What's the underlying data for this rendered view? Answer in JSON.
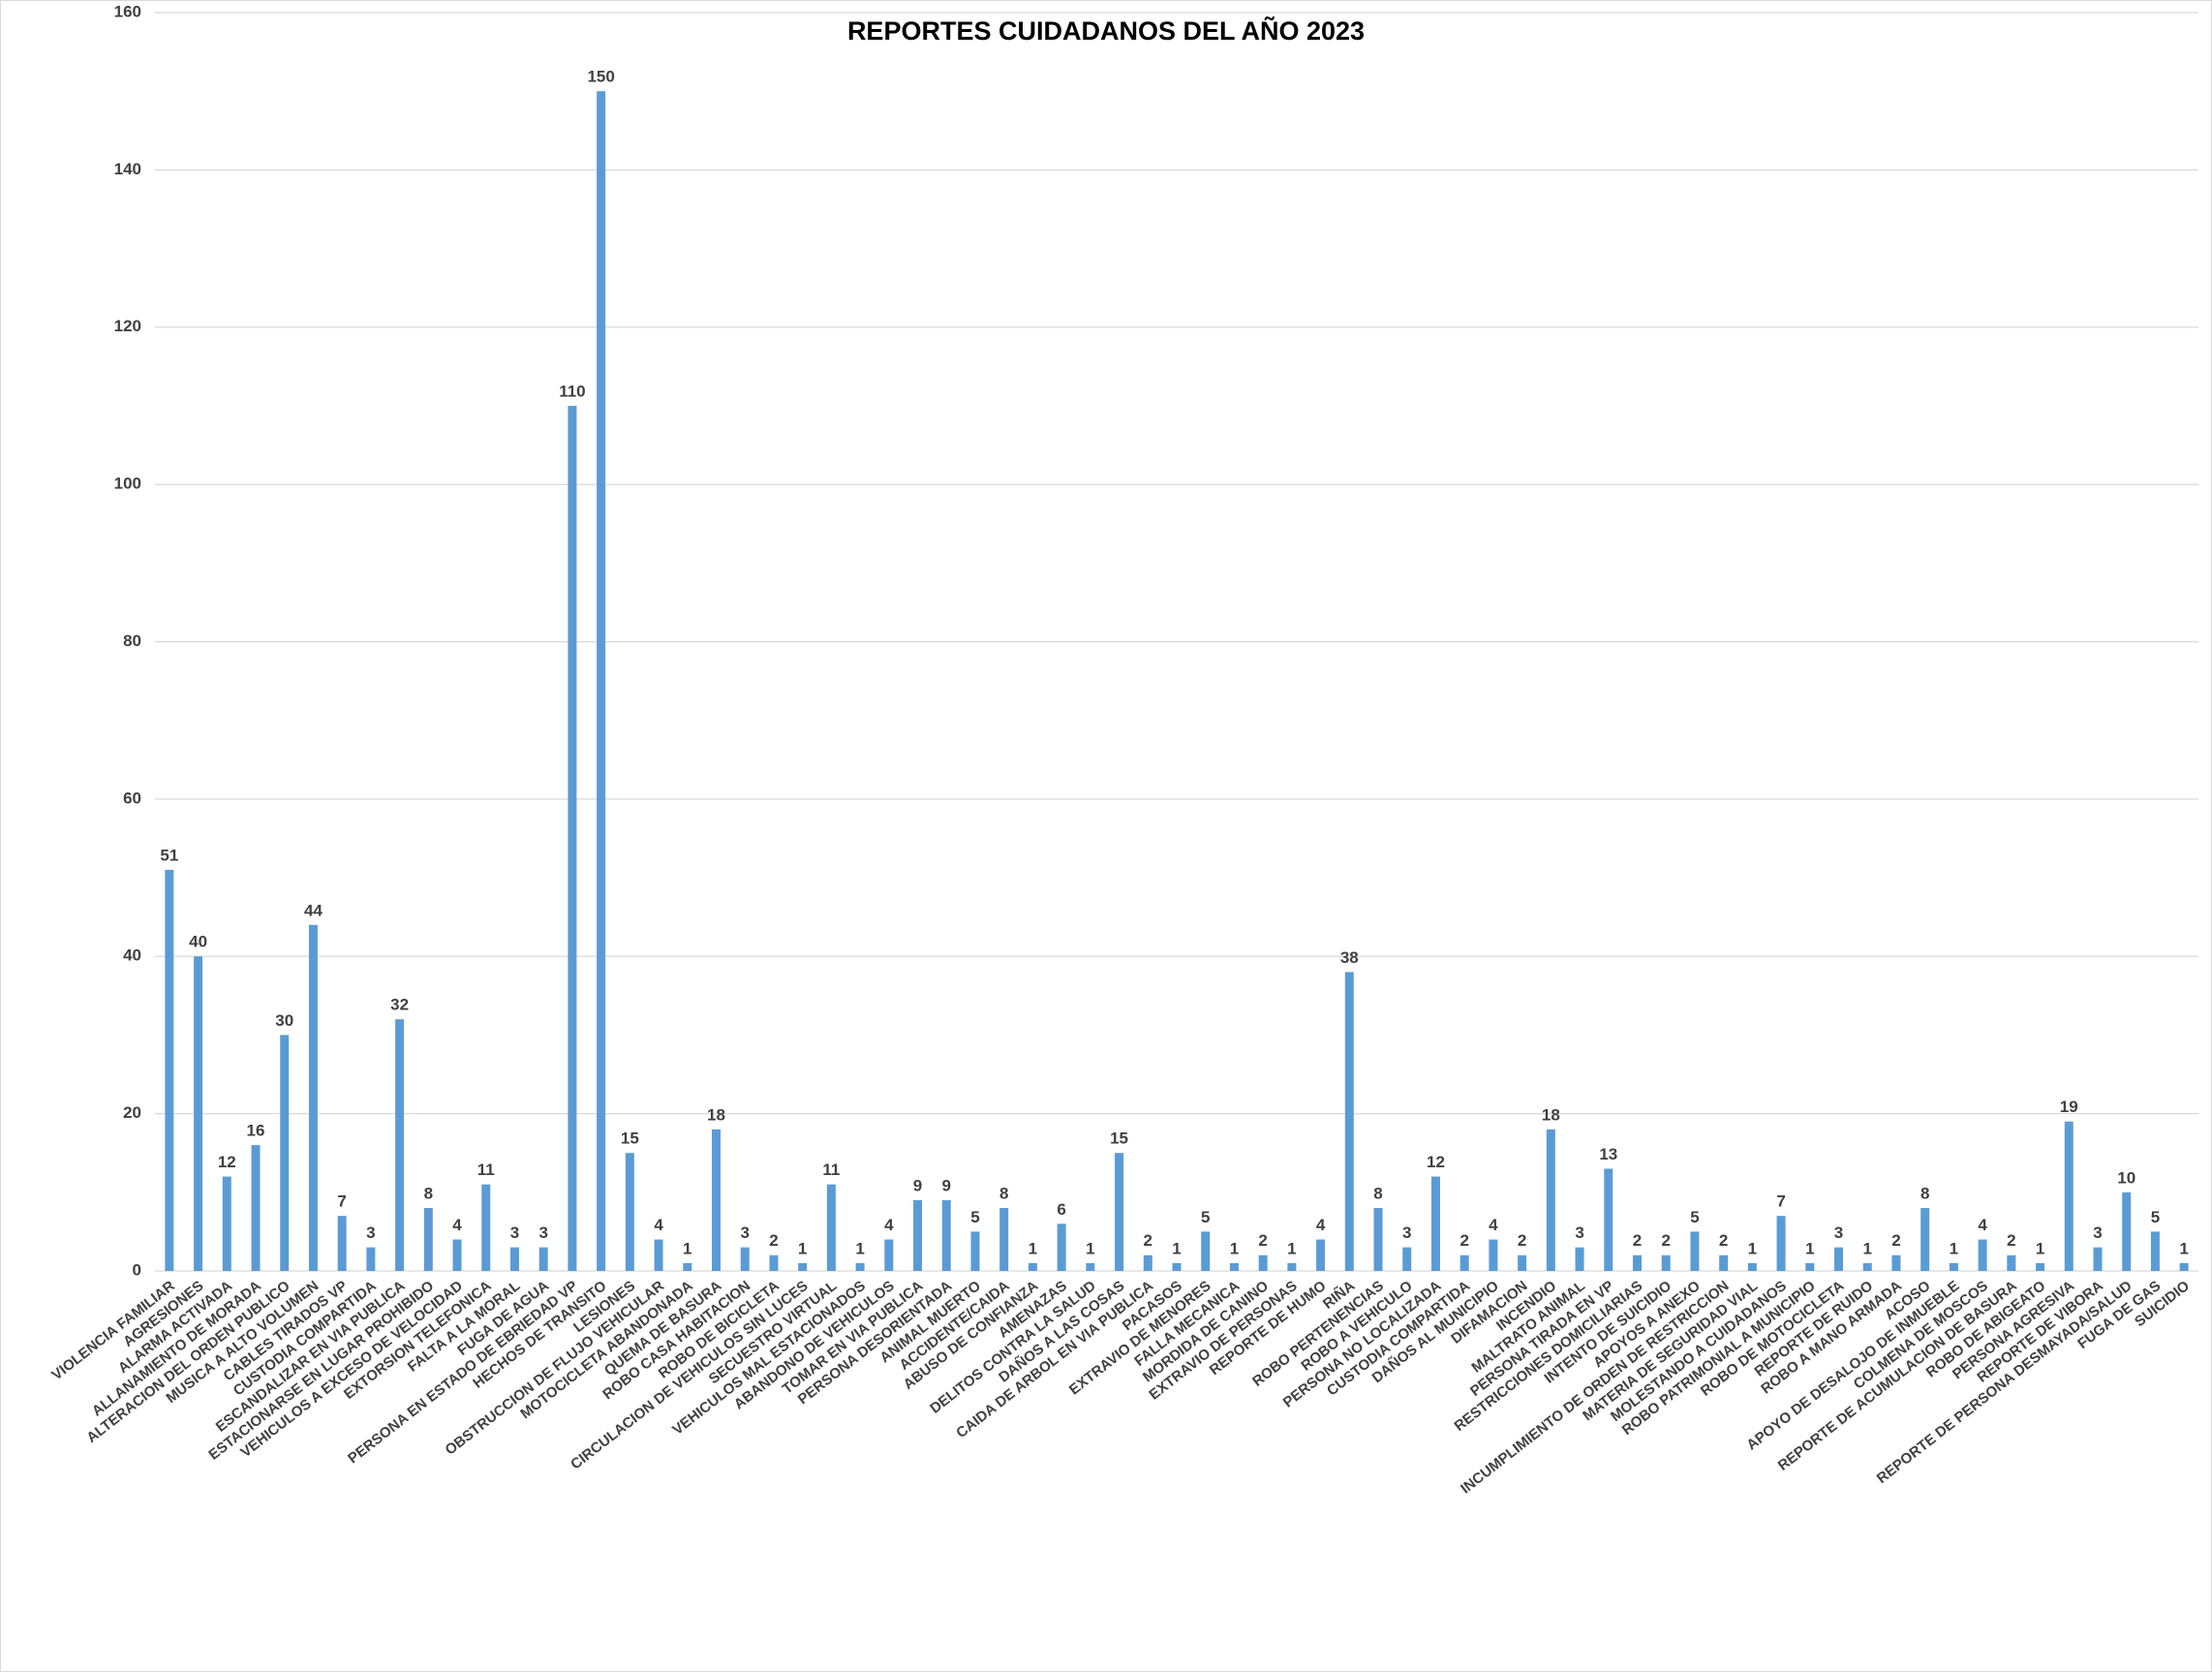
{
  "chart_data": {
    "type": "bar",
    "title": "REPORTES  CUIDADANOS  DEL AÑO  2023",
    "categories": [
      "VIOLENCIA FAMILIAR",
      "AGRESIONES",
      "ALARMA ACTIVADA",
      "ALLANAMIENTO DE MORADA",
      "ALTERACION DEL ORDEN PUBLICO",
      "MUSICA A ALTO VOLUMEN",
      "CABLES TIRADOS VP",
      "CUSTODIA COMPARTIDA",
      "ESCANDALIZAR EN VIA PUBLICA",
      "ESTACIONARSE EN LUGAR PROHIBIDO",
      "VEHICULOS A EXCESO DE VELOCIDAD",
      "EXTORSION TELEFONICA",
      "FALTA A LA MORAL",
      "FUGA DE AGUA",
      "PERSONA EN ESTADO DE EBRIEDAD VP",
      "HECHOS DE TRANSITO",
      "LESIONES",
      "OBSTRUCCION DE FLUJO VEHICULAR",
      "MOTOCICLETA ABANDONADA",
      "QUEMA DE BASURA",
      "ROBO CASA HABITACION",
      "ROBO DE BICICLETA",
      "CIRCULACION DE VEHICULOS SIN LUCES",
      "SECUESTRO VIRTUAL",
      "VEHICULOS MAL ESTACIONADOS",
      "ABANDONO DE VEHICULOS",
      "TOMAR EN VIA PUBLICA",
      "PERSONA DESORIENTADA",
      "ANIMAL MUERTO",
      "ACCIDENTE/CAIDA",
      "ABUSO DE CONFIANZA",
      "AMENAZAS",
      "DELITOS CONTRA LA SALUD",
      "DAÑOS A LAS COSAS",
      "CAIDA DE ARBOL EN VIA PUBLICA",
      "PACASOS",
      "EXTRAVIO DE MENORES",
      "FALLA MECANICA",
      "MORDIDA DE CANINO",
      "EXTRAVIO DE PERSONAS",
      "REPORTE DE HUMO",
      "RIÑA",
      "ROBO PERTENENCIAS",
      "ROBO A VEHICULO",
      "PERSONA NO LOCALIZADA",
      "CUSTODIA COMPARTIDA",
      "DAÑOS AL MUNICIPIO",
      "DIFAMACION",
      "INCENDIO",
      "MALTRATO ANIMAL",
      "PERSONA TIRADA EN VP",
      "RESTRICCIONES DOMICILIARIAS",
      "INTENTO DE SUICIDIO",
      "APOYOS A ANEXO",
      "INCUMPLIMIENTO DE ORDEN DE RESTRICCION",
      "MATERIA DE SEGURIDAD VIAL",
      "MOLESTANDO A CUIDADANOS",
      "ROBO PATRIMONIAL A MUNICIPIO",
      "ROBO DE MOTOCICLETA",
      "REPORTE DE RUIDO",
      "ROBO A MANO ARMADA",
      "ACOSO",
      "APOYO DE DESALOJO DE INMUEBLE",
      "COLMENA DE MOSCOS",
      "REPORTE DE ACUMULACION DE BASURA",
      "ROBO DE ABIGEATO",
      "PERSONA AGRESIVA",
      "REPORTE DE VIBORA",
      "REPORTE DE PERSONA DESMAYADA/SALUD",
      "FUGA DE GAS",
      "SUICIDIO"
    ],
    "values": [
      51,
      40,
      12,
      16,
      30,
      44,
      7,
      3,
      32,
      8,
      4,
      11,
      3,
      3,
      110,
      150,
      15,
      4,
      1,
      18,
      3,
      2,
      1,
      11,
      1,
      4,
      9,
      9,
      5,
      8,
      1,
      6,
      1,
      15,
      2,
      1,
      5,
      1,
      2,
      1,
      4,
      38,
      8,
      3,
      12,
      2,
      4,
      2,
      18,
      3,
      13,
      2,
      2,
      5,
      2,
      1,
      7,
      1,
      3,
      1,
      2,
      8,
      1,
      4,
      2,
      1,
      19,
      3,
      10,
      5,
      1
    ],
    "color": "#5b9bd5",
    "ylim": [
      0,
      160
    ],
    "yticks": [
      0,
      20,
      40,
      60,
      80,
      100,
      120,
      140,
      160
    ],
    "grid": true
  }
}
